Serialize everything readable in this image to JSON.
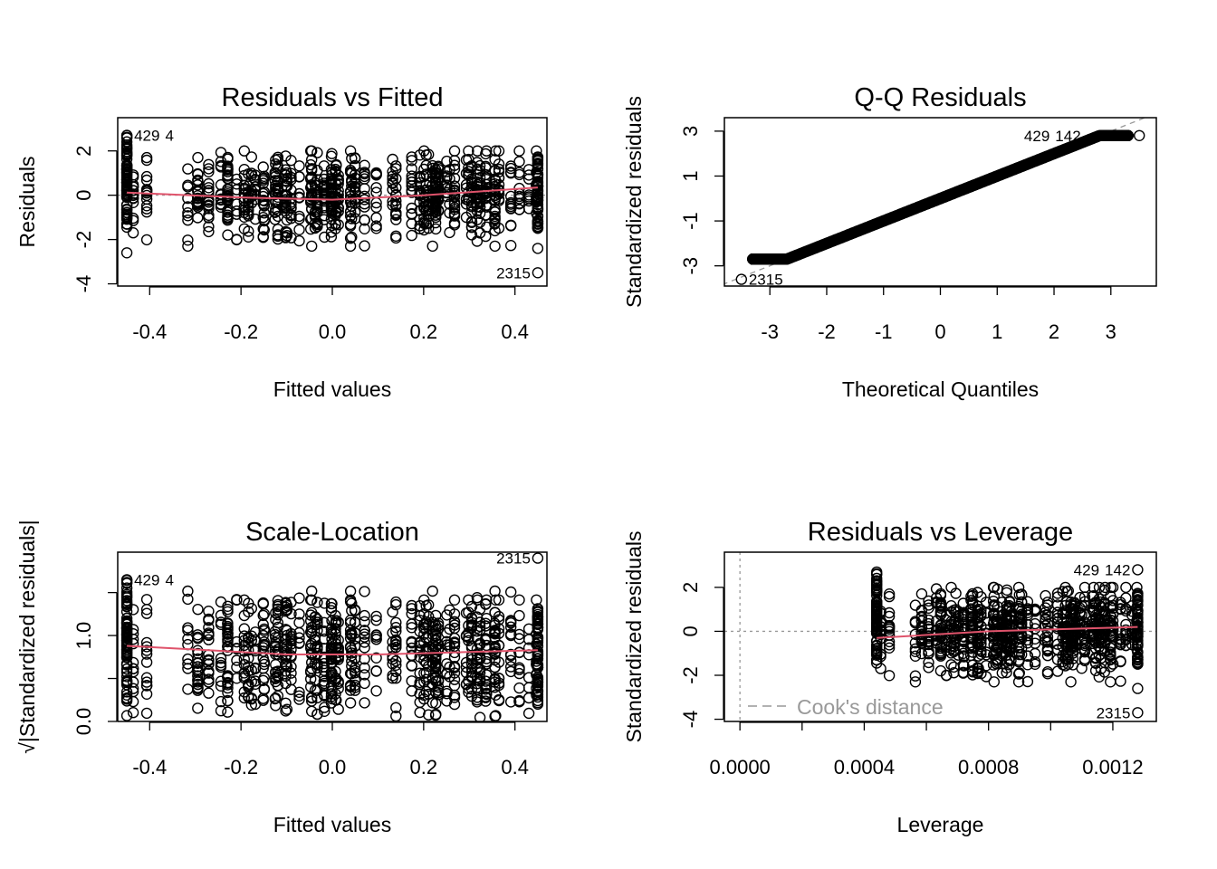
{
  "chart_data": [
    {
      "type": "scatter",
      "title": "Residuals vs Fitted",
      "xlabel": "Fitted values",
      "ylabel": "Residuals",
      "xlim": [
        -0.47,
        0.47
      ],
      "ylim": [
        -4.1,
        3.5
      ],
      "xticks": [
        "-0.4",
        "-0.2",
        "0.0",
        "0.2",
        "0.4"
      ],
      "xtick_values": [
        -0.4,
        -0.2,
        0.0,
        0.2,
        0.4
      ],
      "yticks": [
        "-4",
        "-2",
        "0",
        "2"
      ],
      "ytick_values": [
        -4,
        -2,
        0,
        2
      ],
      "x_range_points": [
        -0.45,
        0.45
      ],
      "reference_line": {
        "y": 0,
        "style": "dotted",
        "color": "#999999"
      },
      "smooth": {
        "color": "#DF536B",
        "x": [
          -0.45,
          -0.2,
          0.0,
          0.2,
          0.45
        ],
        "y": [
          0.12,
          -0.1,
          -0.2,
          0.0,
          0.35
        ]
      },
      "labeled_points": [
        {
          "label": "429",
          "x": -0.45,
          "y": 2.7
        },
        {
          "label": "4",
          "x": -0.45,
          "y": 2.7
        },
        {
          "label": "2315",
          "x": 0.45,
          "y": -3.5
        }
      ]
    },
    {
      "type": "scatter",
      "title": "Q-Q Residuals",
      "xlabel": "Theoretical Quantiles",
      "ylabel": "Standardized residuals",
      "xlim": [
        -3.8,
        3.8
      ],
      "ylim": [
        -3.9,
        3.6
      ],
      "xticks": [
        "-3",
        "-2",
        "-1",
        "0",
        "1",
        "2",
        "3"
      ],
      "xtick_values": [
        -3,
        -2,
        -1,
        0,
        1,
        2,
        3
      ],
      "yticks": [
        "-3",
        "-1",
        "1",
        "3"
      ],
      "ytick_values": [
        -3,
        -1,
        1,
        3
      ],
      "reference_line": {
        "slope": 1,
        "intercept": 0,
        "style": "dashed",
        "color": "#999999"
      },
      "labeled_points": [
        {
          "label": "142",
          "x": 2.6,
          "y": 2.8
        },
        {
          "label": "429",
          "x": 2.6,
          "y": 2.8
        },
        {
          "label": "2315",
          "x": -3.5,
          "y": -3.6
        }
      ]
    },
    {
      "type": "scatter",
      "title": "Scale-Location",
      "xlabel": "Fitted values",
      "ylabel": "√|Standardized residuals|",
      "xlim": [
        -0.47,
        0.47
      ],
      "ylim": [
        0,
        1.97
      ],
      "xticks": [
        "-0.4",
        "-0.2",
        "0.0",
        "0.2",
        "0.4"
      ],
      "xtick_values": [
        -0.4,
        -0.2,
        0.0,
        0.2,
        0.4
      ],
      "yticks": [
        "0.0",
        "",
        "1.0",
        ""
      ],
      "ytick_values": [
        0,
        0.5,
        1.0,
        1.5
      ],
      "smooth": {
        "color": "#DF536B",
        "x": [
          -0.45,
          -0.1,
          0.1,
          0.45
        ],
        "y": [
          0.88,
          0.78,
          0.78,
          0.83
        ]
      },
      "labeled_points": [
        {
          "label": "2315",
          "x": 0.45,
          "y": 1.9
        },
        {
          "label": "429",
          "x": -0.45,
          "y": 1.65
        },
        {
          "label": "4",
          "x": -0.45,
          "y": 1.65
        }
      ]
    },
    {
      "type": "scatter",
      "title": "Residuals vs Leverage",
      "xlabel": "Leverage",
      "ylabel": "Standardized residuals",
      "xlim": [
        -5e-05,
        0.00134
      ],
      "ylim": [
        -4.1,
        3.6
      ],
      "xticks": [
        "0.0000",
        "",
        "0.0004",
        "",
        "0.0008",
        "",
        "0.0012"
      ],
      "xtick_values": [
        0,
        0.0002,
        0.0004,
        0.0006,
        0.0008,
        0.001,
        0.0012
      ],
      "yticks": [
        "-4",
        "-2",
        "0",
        "2"
      ],
      "ytick_values": [
        -4,
        -2,
        0,
        2
      ],
      "smooth": {
        "color": "#DF536B",
        "x": [
          0.00044,
          0.0008,
          0.00128
        ],
        "y": [
          -0.3,
          0.0,
          0.2
        ]
      },
      "legend": {
        "label": "Cook's distance",
        "position": "bottom-left",
        "color": "#999999"
      },
      "labeled_points": [
        {
          "label": "142",
          "x": 0.00128,
          "y": 2.8
        },
        {
          "label": "429",
          "x": 0.00128,
          "y": 2.8
        },
        {
          "label": "2315",
          "x": 0.00128,
          "y": -3.7
        }
      ]
    }
  ]
}
